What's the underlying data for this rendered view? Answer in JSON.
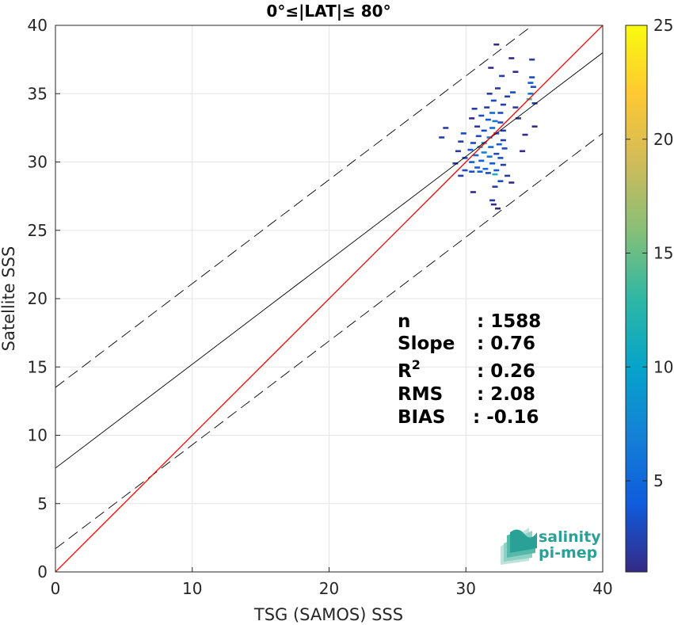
{
  "chart_data": {
    "type": "scatter",
    "title": "0°≤|LAT|≤ 80°",
    "xlabel": "TSG (SAMOS) SSS",
    "ylabel": "Satellite SSS",
    "xlim": [
      0,
      40
    ],
    "ylim": [
      0,
      40
    ],
    "xticks": [
      "0",
      "10",
      "20",
      "30",
      "40"
    ],
    "yticks": [
      "0",
      "5",
      "10",
      "15",
      "20",
      "25",
      "30",
      "35",
      "40"
    ],
    "grid": true,
    "colorbar": {
      "range": [
        1,
        25
      ],
      "ticks": [
        "5",
        "10",
        "15",
        "20",
        "25"
      ],
      "colormap": "parula",
      "colors": [
        "#352a87",
        "#0f5cdd",
        "#1481d6",
        "#06a4ca",
        "#2eb7a4",
        "#87bf77",
        "#d1bb59",
        "#fec832",
        "#f9fb0e"
      ]
    },
    "lines": {
      "identity": {
        "slope": 1,
        "intercept": 0,
        "color": "#ff0000"
      },
      "fit": {
        "slope": 0.76,
        "intercept": 7.6,
        "color": "#000000"
      },
      "upper_bound": {
        "slope": 0.76,
        "intercept": 13.5,
        "color": "#000000",
        "style": "dashed"
      },
      "lower_bound": {
        "slope": 0.76,
        "intercept": 1.7,
        "color": "#000000",
        "style": "dashed"
      }
    },
    "density_points": [
      [
        32.2,
        38.6,
        1
      ],
      [
        33.3,
        37.6,
        1
      ],
      [
        34.8,
        37.5,
        2
      ],
      [
        33.6,
        36.6,
        1
      ],
      [
        31.8,
        36.9,
        1
      ],
      [
        32.6,
        36.3,
        2
      ],
      [
        34.8,
        36.2,
        3
      ],
      [
        34.7,
        35.8,
        4
      ],
      [
        34.9,
        35.5,
        3
      ],
      [
        32.3,
        35.4,
        2
      ],
      [
        33.4,
        35.1,
        3
      ],
      [
        31.7,
        35.0,
        2
      ],
      [
        34.7,
        35.0,
        6
      ],
      [
        34.6,
        34.6,
        14
      ],
      [
        32.0,
        34.5,
        3
      ],
      [
        32.7,
        34.2,
        2
      ],
      [
        35.0,
        34.3,
        2
      ],
      [
        33.6,
        34.0,
        2
      ],
      [
        31.5,
        34.0,
        2
      ],
      [
        31.9,
        33.6,
        5
      ],
      [
        30.6,
        33.9,
        2
      ],
      [
        31.1,
        33.4,
        3
      ],
      [
        32.5,
        33.6,
        3
      ],
      [
        30.4,
        33.2,
        1
      ],
      [
        31.6,
        33.1,
        4
      ],
      [
        32.1,
        33.0,
        6
      ],
      [
        32.5,
        32.9,
        3
      ],
      [
        35.0,
        32.6,
        1
      ],
      [
        30.8,
        32.6,
        2
      ],
      [
        31.9,
        32.5,
        5
      ],
      [
        32.7,
        32.3,
        2
      ],
      [
        31.3,
        32.3,
        3
      ],
      [
        28.5,
        32.5,
        2
      ],
      [
        29.8,
        32.1,
        3
      ],
      [
        32.2,
        32.1,
        4
      ],
      [
        34.3,
        32.0,
        1
      ],
      [
        30.9,
        31.9,
        3
      ],
      [
        31.7,
        31.8,
        6
      ],
      [
        32.7,
        31.6,
        2
      ],
      [
        29.6,
        31.5,
        2
      ],
      [
        31.3,
        31.4,
        8
      ],
      [
        32.4,
        31.3,
        4
      ],
      [
        30.5,
        31.4,
        3
      ],
      [
        28.2,
        31.8,
        2
      ],
      [
        31.0,
        31.1,
        10
      ],
      [
        31.8,
        31.1,
        5
      ],
      [
        32.8,
        31.0,
        3
      ],
      [
        30.3,
        30.9,
        4
      ],
      [
        29.4,
        30.8,
        2
      ],
      [
        31.3,
        30.7,
        7
      ],
      [
        32.2,
        30.6,
        3
      ],
      [
        30.7,
        30.5,
        5
      ],
      [
        31.7,
        30.4,
        6
      ],
      [
        29.9,
        30.3,
        3
      ],
      [
        32.5,
        30.3,
        3
      ],
      [
        31.1,
        30.1,
        4
      ],
      [
        30.4,
        30.0,
        4
      ],
      [
        31.9,
        29.9,
        4
      ],
      [
        29.2,
        29.9,
        2
      ],
      [
        32.7,
        29.8,
        2
      ],
      [
        30.8,
        29.6,
        4
      ],
      [
        31.4,
        29.5,
        5
      ],
      [
        29.9,
        29.4,
        3
      ],
      [
        32.2,
        29.4,
        4
      ],
      [
        30.4,
        29.3,
        3
      ],
      [
        31.0,
        29.3,
        4
      ],
      [
        32.1,
        29.1,
        12
      ],
      [
        31.6,
        29.2,
        3
      ],
      [
        33.0,
        29.0,
        2
      ],
      [
        29.6,
        29.0,
        2
      ],
      [
        32.5,
        28.6,
        3
      ],
      [
        33.3,
        28.5,
        1
      ],
      [
        32.1,
        28.2,
        2
      ],
      [
        30.5,
        27.8,
        1
      ],
      [
        31.9,
        27.2,
        2
      ],
      [
        32.0,
        26.9,
        1
      ],
      [
        32.3,
        26.6,
        1
      ],
      [
        33.0,
        34.8,
        2
      ],
      [
        33.8,
        33.2,
        2
      ],
      [
        34.1,
        30.8,
        1
      ]
    ],
    "stats": {
      "rows": [
        {
          "label": "n",
          "value": ": 1588"
        },
        {
          "label": "Slope",
          "value": ": 0.76"
        },
        {
          "label": "R",
          "sup": "2",
          "value": ": 0.26"
        },
        {
          "label": "RMS",
          "value": ": 2.08"
        },
        {
          "label": "BIAS",
          "value": ": -0.16"
        }
      ]
    }
  },
  "logo": {
    "line1": "salinity",
    "line2": "pi-mep",
    "color": "#2aa197"
  }
}
